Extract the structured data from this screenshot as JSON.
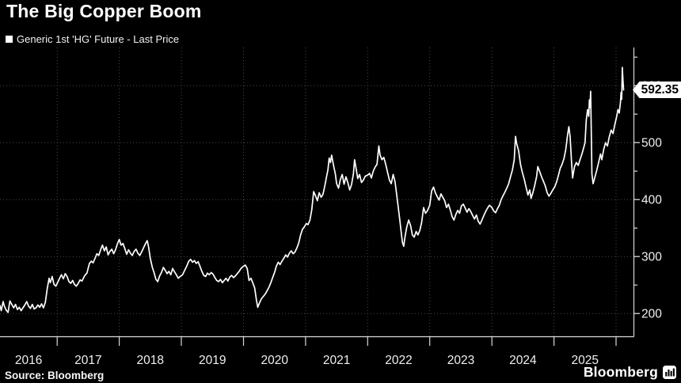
{
  "header": {
    "title": "The Big Copper Boom",
    "legend_label": "Generic 1st 'HG' Future - Last Price"
  },
  "footer": {
    "source": "Source: Bloomberg",
    "brand": "Bloomberg"
  },
  "colors": {
    "background": "#000000",
    "line": "#ffffff",
    "grid": "#4a4a4a",
    "axis": "#d9d9d9",
    "tick_label": "#f0f0f0",
    "price_flag_bg": "#ffffff",
    "price_flag_text": "#000000"
  },
  "chart_data": {
    "type": "line",
    "title": "The Big Copper Boom",
    "series_name": "Generic 1st 'HG' Future - Last Price",
    "last_price": 592.35,
    "last_price_label": "592.35",
    "xlim": [
      2016.08,
      2026.28
    ],
    "ylim": [
      160,
      667
    ],
    "yticks_major": [
      200,
      300,
      400,
      500,
      600
    ],
    "yticks_minor": [
      250,
      350,
      450,
      550,
      650
    ],
    "year_boundaries": [
      2017,
      2018,
      2019,
      2020,
      2021,
      2022,
      2023,
      2024,
      2025,
      2026
    ],
    "year_labels": [
      "2016",
      "2017",
      "2018",
      "2019",
      "2020",
      "2021",
      "2022",
      "2023",
      "2024",
      "2025"
    ],
    "grid": true,
    "legend_position": "top-left",
    "points": [
      [
        2016.08,
        214
      ],
      [
        2016.1,
        205
      ],
      [
        2016.13,
        221
      ],
      [
        2016.15,
        213
      ],
      [
        2016.18,
        206
      ],
      [
        2016.21,
        202
      ],
      [
        2016.24,
        222
      ],
      [
        2016.27,
        216
      ],
      [
        2016.3,
        210
      ],
      [
        2016.33,
        216
      ],
      [
        2016.36,
        207
      ],
      [
        2016.39,
        211
      ],
      [
        2016.42,
        205
      ],
      [
        2016.45,
        210
      ],
      [
        2016.48,
        215
      ],
      [
        2016.51,
        221
      ],
      [
        2016.54,
        213
      ],
      [
        2016.57,
        209
      ],
      [
        2016.6,
        216
      ],
      [
        2016.63,
        208
      ],
      [
        2016.66,
        210
      ],
      [
        2016.69,
        215
      ],
      [
        2016.72,
        211
      ],
      [
        2016.75,
        217
      ],
      [
        2016.78,
        210
      ],
      [
        2016.81,
        220
      ],
      [
        2016.84,
        243
      ],
      [
        2016.87,
        262
      ],
      [
        2016.89,
        254
      ],
      [
        2016.92,
        265
      ],
      [
        2016.95,
        251
      ],
      [
        2016.98,
        248
      ],
      [
        2017.01,
        255
      ],
      [
        2017.04,
        262
      ],
      [
        2017.07,
        268
      ],
      [
        2017.1,
        261
      ],
      [
        2017.13,
        270
      ],
      [
        2017.16,
        265
      ],
      [
        2017.19,
        256
      ],
      [
        2017.22,
        253
      ],
      [
        2017.25,
        258
      ],
      [
        2017.28,
        251
      ],
      [
        2017.31,
        248
      ],
      [
        2017.34,
        253
      ],
      [
        2017.37,
        259
      ],
      [
        2017.4,
        257
      ],
      [
        2017.44,
        266
      ],
      [
        2017.48,
        271
      ],
      [
        2017.52,
        288
      ],
      [
        2017.55,
        292
      ],
      [
        2017.58,
        289
      ],
      [
        2017.61,
        297
      ],
      [
        2017.64,
        305
      ],
      [
        2017.67,
        302
      ],
      [
        2017.7,
        312
      ],
      [
        2017.73,
        320
      ],
      [
        2017.76,
        310
      ],
      [
        2017.79,
        317
      ],
      [
        2017.82,
        303
      ],
      [
        2017.85,
        309
      ],
      [
        2017.88,
        313
      ],
      [
        2017.91,
        305
      ],
      [
        2017.94,
        312
      ],
      [
        2017.97,
        322
      ],
      [
        2018.0,
        330
      ],
      [
        2018.03,
        320
      ],
      [
        2018.06,
        323
      ],
      [
        2018.09,
        314
      ],
      [
        2018.12,
        304
      ],
      [
        2018.15,
        312
      ],
      [
        2018.18,
        306
      ],
      [
        2018.21,
        302
      ],
      [
        2018.24,
        309
      ],
      [
        2018.27,
        313
      ],
      [
        2018.3,
        306
      ],
      [
        2018.33,
        302
      ],
      [
        2018.36,
        308
      ],
      [
        2018.39,
        315
      ],
      [
        2018.42,
        322
      ],
      [
        2018.45,
        328
      ],
      [
        2018.47,
        318
      ],
      [
        2018.5,
        297
      ],
      [
        2018.53,
        282
      ],
      [
        2018.56,
        272
      ],
      [
        2018.59,
        260
      ],
      [
        2018.62,
        256
      ],
      [
        2018.65,
        266
      ],
      [
        2018.68,
        272
      ],
      [
        2018.71,
        281
      ],
      [
        2018.74,
        276
      ],
      [
        2018.77,
        270
      ],
      [
        2018.8,
        274
      ],
      [
        2018.83,
        268
      ],
      [
        2018.86,
        279
      ],
      [
        2018.89,
        273
      ],
      [
        2018.92,
        268
      ],
      [
        2018.95,
        262
      ],
      [
        2018.98,
        265
      ],
      [
        2019.02,
        268
      ],
      [
        2019.05,
        275
      ],
      [
        2019.09,
        284
      ],
      [
        2019.12,
        292
      ],
      [
        2019.15,
        295
      ],
      [
        2019.18,
        290
      ],
      [
        2019.21,
        293
      ],
      [
        2019.24,
        288
      ],
      [
        2019.27,
        291
      ],
      [
        2019.3,
        283
      ],
      [
        2019.33,
        274
      ],
      [
        2019.36,
        267
      ],
      [
        2019.39,
        265
      ],
      [
        2019.42,
        271
      ],
      [
        2019.45,
        268
      ],
      [
        2019.48,
        272
      ],
      [
        2019.51,
        269
      ],
      [
        2019.54,
        263
      ],
      [
        2019.57,
        258
      ],
      [
        2019.6,
        256
      ],
      [
        2019.63,
        260
      ],
      [
        2019.66,
        254
      ],
      [
        2019.69,
        258
      ],
      [
        2019.72,
        262
      ],
      [
        2019.75,
        257
      ],
      [
        2019.78,
        264
      ],
      [
        2019.81,
        267
      ],
      [
        2019.84,
        263
      ],
      [
        2019.87,
        266
      ],
      [
        2019.9,
        270
      ],
      [
        2019.93,
        274
      ],
      [
        2019.96,
        279
      ],
      [
        2020.0,
        283
      ],
      [
        2020.03,
        285
      ],
      [
        2020.06,
        279
      ],
      [
        2020.09,
        258
      ],
      [
        2020.12,
        262
      ],
      [
        2020.15,
        254
      ],
      [
        2020.18,
        245
      ],
      [
        2020.21,
        223
      ],
      [
        2020.23,
        211
      ],
      [
        2020.26,
        219
      ],
      [
        2020.29,
        226
      ],
      [
        2020.32,
        230
      ],
      [
        2020.35,
        234
      ],
      [
        2020.38,
        240
      ],
      [
        2020.41,
        246
      ],
      [
        2020.44,
        254
      ],
      [
        2020.47,
        263
      ],
      [
        2020.5,
        272
      ],
      [
        2020.53,
        283
      ],
      [
        2020.56,
        290
      ],
      [
        2020.59,
        286
      ],
      [
        2020.62,
        292
      ],
      [
        2020.65,
        297
      ],
      [
        2020.68,
        303
      ],
      [
        2020.71,
        299
      ],
      [
        2020.74,
        306
      ],
      [
        2020.77,
        310
      ],
      [
        2020.8,
        305
      ],
      [
        2020.83,
        308
      ],
      [
        2020.86,
        315
      ],
      [
        2020.89,
        324
      ],
      [
        2020.92,
        338
      ],
      [
        2020.95,
        348
      ],
      [
        2020.98,
        352
      ],
      [
        2021.01,
        358
      ],
      [
        2021.04,
        356
      ],
      [
        2021.07,
        364
      ],
      [
        2021.1,
        382
      ],
      [
        2021.13,
        414
      ],
      [
        2021.16,
        407
      ],
      [
        2021.19,
        398
      ],
      [
        2021.22,
        412
      ],
      [
        2021.25,
        404
      ],
      [
        2021.28,
        409
      ],
      [
        2021.31,
        424
      ],
      [
        2021.34,
        441
      ],
      [
        2021.36,
        452
      ],
      [
        2021.38,
        473
      ],
      [
        2021.4,
        465
      ],
      [
        2021.42,
        478
      ],
      [
        2021.45,
        460
      ],
      [
        2021.48,
        445
      ],
      [
        2021.5,
        428
      ],
      [
        2021.53,
        420
      ],
      [
        2021.56,
        435
      ],
      [
        2021.59,
        444
      ],
      [
        2021.62,
        427
      ],
      [
        2021.65,
        440
      ],
      [
        2021.68,
        430
      ],
      [
        2021.71,
        417
      ],
      [
        2021.74,
        426
      ],
      [
        2021.77,
        445
      ],
      [
        2021.79,
        470
      ],
      [
        2021.81,
        457
      ],
      [
        2021.84,
        437
      ],
      [
        2021.87,
        444
      ],
      [
        2021.9,
        430
      ],
      [
        2021.93,
        434
      ],
      [
        2021.96,
        441
      ],
      [
        2022.0,
        443
      ],
      [
        2022.03,
        446
      ],
      [
        2022.06,
        438
      ],
      [
        2022.09,
        450
      ],
      [
        2022.12,
        457
      ],
      [
        2022.15,
        462
      ],
      [
        2022.18,
        494
      ],
      [
        2022.2,
        478
      ],
      [
        2022.23,
        470
      ],
      [
        2022.26,
        474
      ],
      [
        2022.29,
        462
      ],
      [
        2022.32,
        448
      ],
      [
        2022.35,
        434
      ],
      [
        2022.38,
        428
      ],
      [
        2022.41,
        444
      ],
      [
        2022.44,
        432
      ],
      [
        2022.47,
        406
      ],
      [
        2022.5,
        380
      ],
      [
        2022.52,
        362
      ],
      [
        2022.54,
        342
      ],
      [
        2022.56,
        325
      ],
      [
        2022.58,
        318
      ],
      [
        2022.6,
        334
      ],
      [
        2022.63,
        352
      ],
      [
        2022.66,
        364
      ],
      [
        2022.69,
        355
      ],
      [
        2022.72,
        338
      ],
      [
        2022.75,
        334
      ],
      [
        2022.78,
        344
      ],
      [
        2022.81,
        338
      ],
      [
        2022.84,
        346
      ],
      [
        2022.87,
        360
      ],
      [
        2022.9,
        386
      ],
      [
        2022.93,
        376
      ],
      [
        2022.96,
        380
      ],
      [
        2023.0,
        390
      ],
      [
        2023.03,
        415
      ],
      [
        2023.06,
        422
      ],
      [
        2023.09,
        412
      ],
      [
        2023.12,
        405
      ],
      [
        2023.15,
        399
      ],
      [
        2023.18,
        410
      ],
      [
        2023.21,
        404
      ],
      [
        2023.24,
        398
      ],
      [
        2023.27,
        386
      ],
      [
        2023.3,
        392
      ],
      [
        2023.33,
        382
      ],
      [
        2023.36,
        370
      ],
      [
        2023.39,
        364
      ],
      [
        2023.42,
        374
      ],
      [
        2023.45,
        381
      ],
      [
        2023.48,
        376
      ],
      [
        2023.51,
        389
      ],
      [
        2023.54,
        392
      ],
      [
        2023.57,
        385
      ],
      [
        2023.6,
        378
      ],
      [
        2023.63,
        384
      ],
      [
        2023.66,
        379
      ],
      [
        2023.69,
        372
      ],
      [
        2023.72,
        366
      ],
      [
        2023.75,
        373
      ],
      [
        2023.78,
        362
      ],
      [
        2023.81,
        357
      ],
      [
        2023.84,
        364
      ],
      [
        2023.87,
        372
      ],
      [
        2023.9,
        379
      ],
      [
        2023.93,
        385
      ],
      [
        2023.96,
        390
      ],
      [
        2024.0,
        386
      ],
      [
        2024.03,
        380
      ],
      [
        2024.06,
        377
      ],
      [
        2024.09,
        384
      ],
      [
        2024.12,
        390
      ],
      [
        2024.15,
        400
      ],
      [
        2024.18,
        407
      ],
      [
        2024.21,
        413
      ],
      [
        2024.24,
        420
      ],
      [
        2024.27,
        428
      ],
      [
        2024.3,
        440
      ],
      [
        2024.33,
        452
      ],
      [
        2024.36,
        470
      ],
      [
        2024.38,
        511
      ],
      [
        2024.4,
        498
      ],
      [
        2024.43,
        486
      ],
      [
        2024.46,
        462
      ],
      [
        2024.49,
        448
      ],
      [
        2024.52,
        436
      ],
      [
        2024.55,
        422
      ],
      [
        2024.58,
        408
      ],
      [
        2024.61,
        417
      ],
      [
        2024.63,
        402
      ],
      [
        2024.66,
        412
      ],
      [
        2024.69,
        425
      ],
      [
        2024.72,
        440
      ],
      [
        2024.74,
        458
      ],
      [
        2024.77,
        449
      ],
      [
        2024.8,
        440
      ],
      [
        2024.83,
        432
      ],
      [
        2024.86,
        424
      ],
      [
        2024.89,
        412
      ],
      [
        2024.92,
        406
      ],
      [
        2024.95,
        411
      ],
      [
        2024.98,
        417
      ],
      [
        2025.01,
        422
      ],
      [
        2025.04,
        430
      ],
      [
        2025.07,
        442
      ],
      [
        2025.1,
        455
      ],
      [
        2025.13,
        462
      ],
      [
        2025.16,
        472
      ],
      [
        2025.19,
        488
      ],
      [
        2025.22,
        515
      ],
      [
        2025.24,
        528
      ],
      [
        2025.26,
        510
      ],
      [
        2025.28,
        470
      ],
      [
        2025.3,
        438
      ],
      [
        2025.33,
        458
      ],
      [
        2025.36,
        465
      ],
      [
        2025.39,
        460
      ],
      [
        2025.42,
        470
      ],
      [
        2025.45,
        480
      ],
      [
        2025.48,
        492
      ],
      [
        2025.5,
        500
      ],
      [
        2025.52,
        540
      ],
      [
        2025.54,
        558
      ],
      [
        2025.56,
        546
      ],
      [
        2025.57,
        575
      ],
      [
        2025.58,
        562
      ],
      [
        2025.59,
        590
      ],
      [
        2025.6,
        520
      ],
      [
        2025.61,
        445
      ],
      [
        2025.63,
        428
      ],
      [
        2025.66,
        440
      ],
      [
        2025.69,
        452
      ],
      [
        2025.72,
        466
      ],
      [
        2025.75,
        480
      ],
      [
        2025.77,
        470
      ],
      [
        2025.8,
        488
      ],
      [
        2025.83,
        500
      ],
      [
        2025.86,
        494
      ],
      [
        2025.89,
        510
      ],
      [
        2025.92,
        522
      ],
      [
        2025.95,
        516
      ],
      [
        2025.98,
        532
      ],
      [
        2026.01,
        546
      ],
      [
        2026.03,
        558
      ],
      [
        2026.05,
        552
      ],
      [
        2026.07,
        570
      ],
      [
        2026.08,
        588
      ],
      [
        2026.09,
        576
      ],
      [
        2026.1,
        632
      ],
      [
        2026.11,
        610
      ],
      [
        2026.12,
        592.35
      ]
    ]
  }
}
